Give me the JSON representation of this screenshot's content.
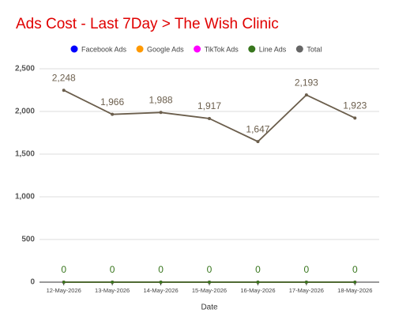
{
  "chart_data": {
    "type": "line",
    "title": "Ads Cost - Last 7Day > The Wish Clinic",
    "x_label": "Date",
    "categories": [
      "12-May-2026",
      "13-May-2026",
      "14-May-2026",
      "15-May-2026",
      "16-May-2026",
      "17-May-2026",
      "18-May-2026"
    ],
    "series": [
      {
        "name": "Facebook Ads",
        "color": "#0000ff",
        "values": [
          0,
          0,
          0,
          0,
          0,
          0,
          0
        ]
      },
      {
        "name": "Google Ads",
        "color": "#ff9900",
        "values": [
          0,
          0,
          0,
          0,
          0,
          0,
          0
        ]
      },
      {
        "name": "TikTok Ads",
        "color": "#ff00ff",
        "values": [
          0,
          0,
          0,
          0,
          0,
          0,
          0
        ]
      },
      {
        "name": "Line Ads",
        "color": "#38761d",
        "values": [
          0,
          0,
          0,
          0,
          0,
          0,
          0
        ],
        "data_labels": true
      },
      {
        "name": "Total",
        "color": "#6b5e4c",
        "values": [
          2248,
          1966,
          1988,
          1917,
          1647,
          2193,
          1923
        ],
        "value_labels": [
          "2,248",
          "1,966",
          "1,988",
          "1,917",
          "1,647",
          "2,193",
          "1,923"
        ],
        "data_labels": true
      }
    ],
    "ylim": [
      0,
      2500
    ],
    "yticks": [
      0,
      500,
      {
        "value": 1000,
        "label": "1,000"
      },
      {
        "value": 1500,
        "label": "1,500"
      },
      {
        "value": 2000,
        "label": "2,000"
      },
      {
        "value": 2500,
        "label": "2,500"
      }
    ],
    "grid": true,
    "legend": "top"
  }
}
